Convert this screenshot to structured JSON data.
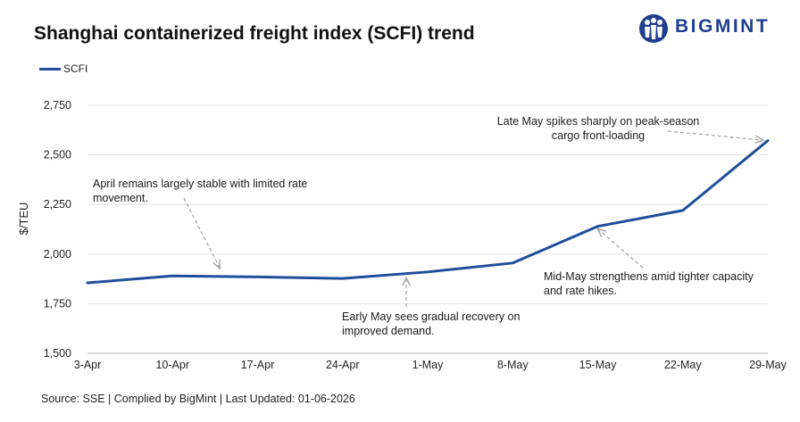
{
  "page": {
    "title": "Shanghai containerized freight index (SCFI) trend",
    "logo_text": "BIGMINT",
    "source": "Source: SSE | Complied by BigMint | Last Updated: 01-06-2026"
  },
  "colors": {
    "series": "#1f4e9a",
    "logo": "#1f3f8f",
    "grid": "#e3e3e3",
    "arrow": "#a6a6a6"
  },
  "chart_data": {
    "type": "line",
    "categories": [
      "3-Apr",
      "10-Apr",
      "17-Apr",
      "24-Apr",
      "1-May",
      "8-May",
      "15-May",
      "22-May",
      "29-May"
    ],
    "series": [
      {
        "name": "SCFI",
        "values": [
          1855,
          1890,
          1885,
          1877,
          1910,
          1955,
          2140,
          2220,
          2572
        ]
      }
    ],
    "ylabel": "$/TEU",
    "ylim": [
      1500,
      2750
    ],
    "yticks": [
      "1,500",
      "1,750",
      "2,000",
      "2,250",
      "2,500",
      "2,750"
    ],
    "grid": true,
    "legend_position": "top-left",
    "annotations": [
      "April remains largely stable with limited rate movement.",
      "Early May sees gradual recovery on improved demand.",
      "Mid-May strengthens amid tighter capacity and rate hikes.",
      "Late May spikes sharply on peak-season cargo front-loading"
    ]
  }
}
